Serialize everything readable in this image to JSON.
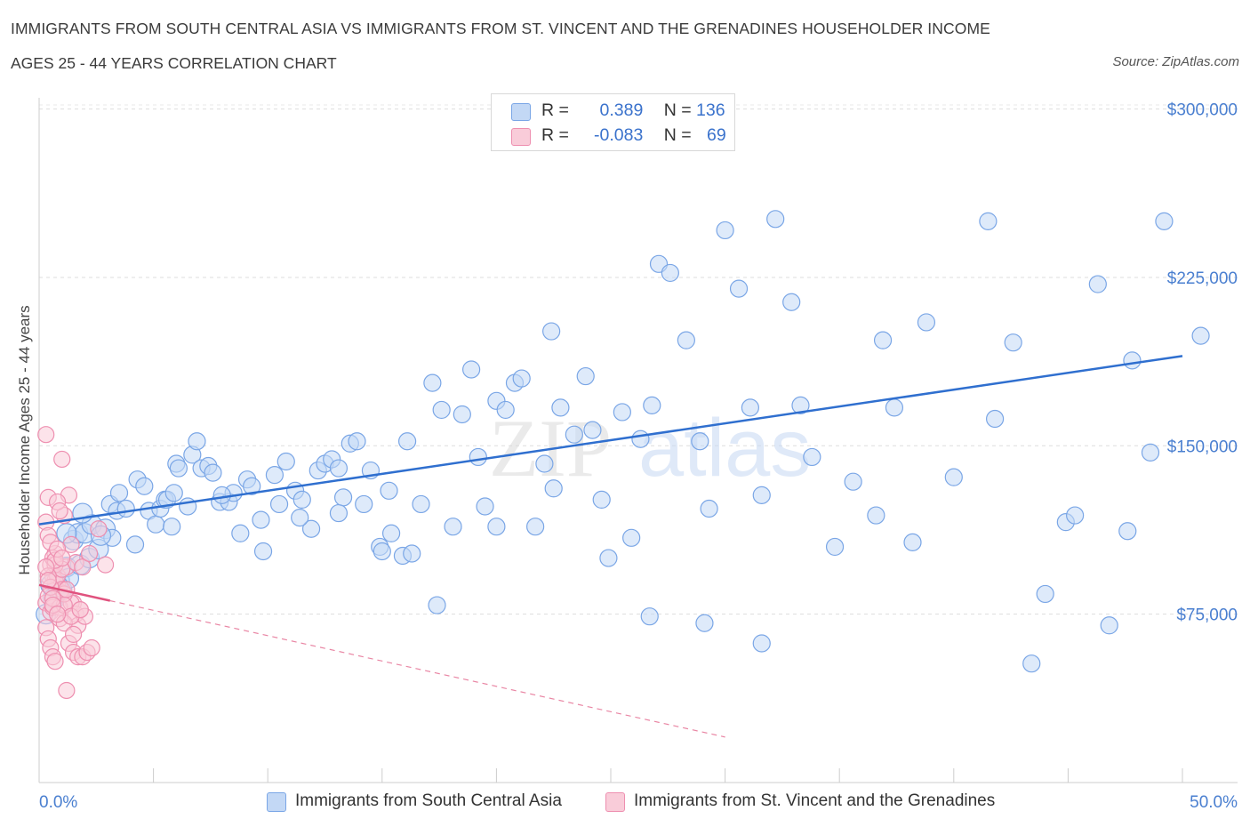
{
  "header": {
    "title": "IMMIGRANTS FROM SOUTH CENTRAL ASIA VS IMMIGRANTS FROM ST. VINCENT AND THE GRENADINES HOUSEHOLDER INCOME",
    "subtitle": "AGES 25 - 44 YEARS CORRELATION CHART",
    "source": "Source: ZipAtlas.com"
  },
  "watermark": {
    "text_zip": "ZIP",
    "text_atlas": "atlas"
  },
  "legend": {
    "rows": [
      {
        "r_label": "R =",
        "r_value": "0.389",
        "n_label": "N =",
        "n_value": "136",
        "color": "#a9c8f2"
      },
      {
        "r_label": "R =",
        "r_value": "-0.083",
        "n_label": "N =",
        "n_value": "69",
        "color": "#f7b7cb"
      }
    ]
  },
  "chart_data": {
    "type": "scatter",
    "ylabel": "Householder Income Ages 25 - 44 years",
    "x_tick_labels": [
      "0.0%",
      "50.0%"
    ],
    "y_tick_labels": [
      "$75,000",
      "$150,000",
      "$225,000",
      "$300,000"
    ],
    "y_ticks": [
      75000,
      150000,
      225000,
      300000
    ],
    "xlim": [
      0,
      50
    ],
    "ylim": [
      0,
      305000
    ],
    "grid": "horizontal-dashed",
    "series": [
      {
        "name": "Immigrants from South Central Asia",
        "color": "#7aa6e6",
        "fill": "#c3d8f5",
        "trend": {
          "x": [
            0,
            50
          ],
          "y": [
            115000,
            190000
          ],
          "style": "solid",
          "color": "#2f6fcf"
        },
        "points": [
          [
            0.5,
            88000
          ],
          [
            0.7,
            82000
          ],
          [
            0.9,
            90000
          ],
          [
            1.0,
            86000
          ],
          [
            1.2,
            96000
          ],
          [
            1.3,
            91000
          ],
          [
            1.5,
            108000
          ],
          [
            1.7,
            111000
          ],
          [
            1.8,
            97000
          ],
          [
            2.0,
            111000
          ],
          [
            2.2,
            100000
          ],
          [
            2.3,
            115000
          ],
          [
            2.6,
            104000
          ],
          [
            2.9,
            113000
          ],
          [
            3.1,
            124000
          ],
          [
            3.2,
            109000
          ],
          [
            3.4,
            121000
          ],
          [
            3.5,
            129000
          ],
          [
            3.8,
            122000
          ],
          [
            4.2,
            106000
          ],
          [
            4.3,
            135000
          ],
          [
            4.6,
            132000
          ],
          [
            4.8,
            121000
          ],
          [
            5.1,
            115000
          ],
          [
            5.3,
            122000
          ],
          [
            5.5,
            126000
          ],
          [
            5.6,
            126000
          ],
          [
            5.8,
            114000
          ],
          [
            6.0,
            142000
          ],
          [
            6.1,
            140000
          ],
          [
            6.5,
            123000
          ],
          [
            6.7,
            146000
          ],
          [
            6.9,
            152000
          ],
          [
            7.1,
            140000
          ],
          [
            7.4,
            141000
          ],
          [
            7.6,
            138000
          ],
          [
            7.9,
            125000
          ],
          [
            8.3,
            125000
          ],
          [
            8.5,
            129000
          ],
          [
            8.8,
            111000
          ],
          [
            9.1,
            135000
          ],
          [
            9.3,
            132000
          ],
          [
            9.7,
            117000
          ],
          [
            9.8,
            103000
          ],
          [
            10.3,
            137000
          ],
          [
            10.5,
            124000
          ],
          [
            10.8,
            143000
          ],
          [
            11.2,
            130000
          ],
          [
            11.5,
            126000
          ],
          [
            11.9,
            113000
          ],
          [
            12.2,
            139000
          ],
          [
            12.5,
            142000
          ],
          [
            12.8,
            144000
          ],
          [
            13.1,
            140000
          ],
          [
            13.3,
            127000
          ],
          [
            13.6,
            151000
          ],
          [
            13.9,
            152000
          ],
          [
            14.2,
            124000
          ],
          [
            14.5,
            139000
          ],
          [
            14.9,
            105000
          ],
          [
            15.3,
            130000
          ],
          [
            15.4,
            111000
          ],
          [
            15.9,
            101000
          ],
          [
            16.1,
            152000
          ],
          [
            16.3,
            102000
          ],
          [
            16.7,
            124000
          ],
          [
            17.2,
            178000
          ],
          [
            17.6,
            166000
          ],
          [
            18.1,
            114000
          ],
          [
            18.5,
            164000
          ],
          [
            18.9,
            184000
          ],
          [
            19.2,
            145000
          ],
          [
            19.5,
            123000
          ],
          [
            20.0,
            170000
          ],
          [
            20.4,
            166000
          ],
          [
            20.8,
            178000
          ],
          [
            21.1,
            180000
          ],
          [
            21.7,
            114000
          ],
          [
            22.1,
            142000
          ],
          [
            22.4,
            201000
          ],
          [
            22.8,
            167000
          ],
          [
            23.4,
            155000
          ],
          [
            23.9,
            181000
          ],
          [
            24.2,
            157000
          ],
          [
            24.6,
            126000
          ],
          [
            24.9,
            100000
          ],
          [
            25.5,
            165000
          ],
          [
            25.9,
            109000
          ],
          [
            26.3,
            153000
          ],
          [
            26.8,
            168000
          ],
          [
            27.1,
            231000
          ],
          [
            27.6,
            227000
          ],
          [
            28.3,
            197000
          ],
          [
            28.9,
            152000
          ],
          [
            29.3,
            122000
          ],
          [
            30.0,
            246000
          ],
          [
            30.6,
            220000
          ],
          [
            31.1,
            167000
          ],
          [
            31.6,
            128000
          ],
          [
            32.2,
            251000
          ],
          [
            32.9,
            214000
          ],
          [
            33.3,
            168000
          ],
          [
            33.8,
            145000
          ],
          [
            34.8,
            105000
          ],
          [
            35.6,
            134000
          ],
          [
            36.6,
            119000
          ],
          [
            36.9,
            197000
          ],
          [
            37.4,
            167000
          ],
          [
            38.2,
            107000
          ],
          [
            38.8,
            205000
          ],
          [
            40.0,
            136000
          ],
          [
            41.5,
            250000
          ],
          [
            41.8,
            162000
          ],
          [
            42.6,
            196000
          ],
          [
            44.0,
            84000
          ],
          [
            44.9,
            116000
          ],
          [
            45.3,
            119000
          ],
          [
            46.3,
            222000
          ],
          [
            46.8,
            70000
          ],
          [
            47.6,
            112000
          ],
          [
            47.8,
            188000
          ],
          [
            48.6,
            147000
          ],
          [
            49.2,
            250000
          ],
          [
            50.8,
            199000
          ],
          [
            43.4,
            53000
          ],
          [
            31.6,
            62000
          ],
          [
            29.1,
            71000
          ],
          [
            26.7,
            74000
          ],
          [
            17.4,
            79000
          ],
          [
            20.0,
            114000
          ],
          [
            13.1,
            120000
          ],
          [
            8.0,
            128000
          ],
          [
            5.9,
            129000
          ],
          [
            11.4,
            118000
          ],
          [
            15.0,
            103000
          ],
          [
            22.5,
            131000
          ],
          [
            1.2,
            111000
          ],
          [
            0.3,
            75000
          ],
          [
            0.6,
            82000
          ],
          [
            2.7,
            110000
          ],
          [
            0.8,
            88000
          ],
          [
            1.9,
            120000
          ]
        ]
      },
      {
        "name": "Immigrants from St. Vincent and the Grenadines",
        "color": "#ee8fb0",
        "fill": "#f9ccd9",
        "trend": {
          "x": [
            0,
            3.1
          ],
          "y": [
            88000,
            81000
          ],
          "style": "solid",
          "color": "#e0527e",
          "extend_dashed_to_x": 30
        },
        "points": [
          [
            0.3,
            155000
          ],
          [
            0.4,
            127000
          ],
          [
            0.5,
            97000
          ],
          [
            0.6,
            92000
          ],
          [
            0.7,
            102000
          ],
          [
            0.8,
            88000
          ],
          [
            0.9,
            85000
          ],
          [
            1.0,
            144000
          ],
          [
            1.1,
            119000
          ],
          [
            1.3,
            128000
          ],
          [
            1.4,
            106000
          ],
          [
            1.5,
            80000
          ],
          [
            0.3,
            80000
          ],
          [
            0.4,
            83000
          ],
          [
            0.5,
            76000
          ],
          [
            0.6,
            78000
          ],
          [
            0.7,
            90000
          ],
          [
            0.8,
            92000
          ],
          [
            0.9,
            78000
          ],
          [
            1.0,
            86000
          ],
          [
            1.2,
            96000
          ],
          [
            1.4,
            80000
          ],
          [
            1.6,
            75000
          ],
          [
            1.7,
            70000
          ],
          [
            1.8,
            77000
          ],
          [
            2.0,
            74000
          ],
          [
            0.3,
            116000
          ],
          [
            0.4,
            110000
          ],
          [
            0.5,
            107000
          ],
          [
            0.6,
            100000
          ],
          [
            0.7,
            97000
          ],
          [
            0.8,
            125000
          ],
          [
            0.9,
            121000
          ],
          [
            1.0,
            95000
          ],
          [
            1.1,
            84000
          ],
          [
            1.2,
            86000
          ],
          [
            1.3,
            62000
          ],
          [
            1.5,
            58000
          ],
          [
            1.7,
            56000
          ],
          [
            1.9,
            56000
          ],
          [
            2.1,
            58000
          ],
          [
            2.3,
            60000
          ],
          [
            0.3,
            69000
          ],
          [
            0.4,
            64000
          ],
          [
            0.5,
            60000
          ],
          [
            0.6,
            56000
          ],
          [
            0.7,
            54000
          ],
          [
            1.2,
            41000
          ],
          [
            0.9,
            73000
          ],
          [
            1.1,
            79000
          ],
          [
            1.6,
            98000
          ],
          [
            1.9,
            96000
          ],
          [
            2.6,
            113000
          ],
          [
            2.9,
            97000
          ],
          [
            0.4,
            92000
          ],
          [
            0.5,
            87000
          ],
          [
            0.6,
            82000
          ],
          [
            0.7,
            99000
          ],
          [
            0.8,
            104000
          ],
          [
            1.0,
            100000
          ],
          [
            1.1,
            71000
          ],
          [
            1.4,
            74000
          ],
          [
            1.5,
            66000
          ],
          [
            1.8,
            77000
          ],
          [
            2.2,
            102000
          ],
          [
            0.3,
            96000
          ],
          [
            0.4,
            90000
          ],
          [
            0.6,
            79000
          ],
          [
            0.8,
            75000
          ]
        ]
      }
    ]
  },
  "bottom_legend": [
    {
      "label": "Immigrants from South Central Asia",
      "color": "#a9c8f2"
    },
    {
      "label": "Immigrants from St. Vincent and the Grenadines",
      "color": "#f7b7cb"
    }
  ]
}
